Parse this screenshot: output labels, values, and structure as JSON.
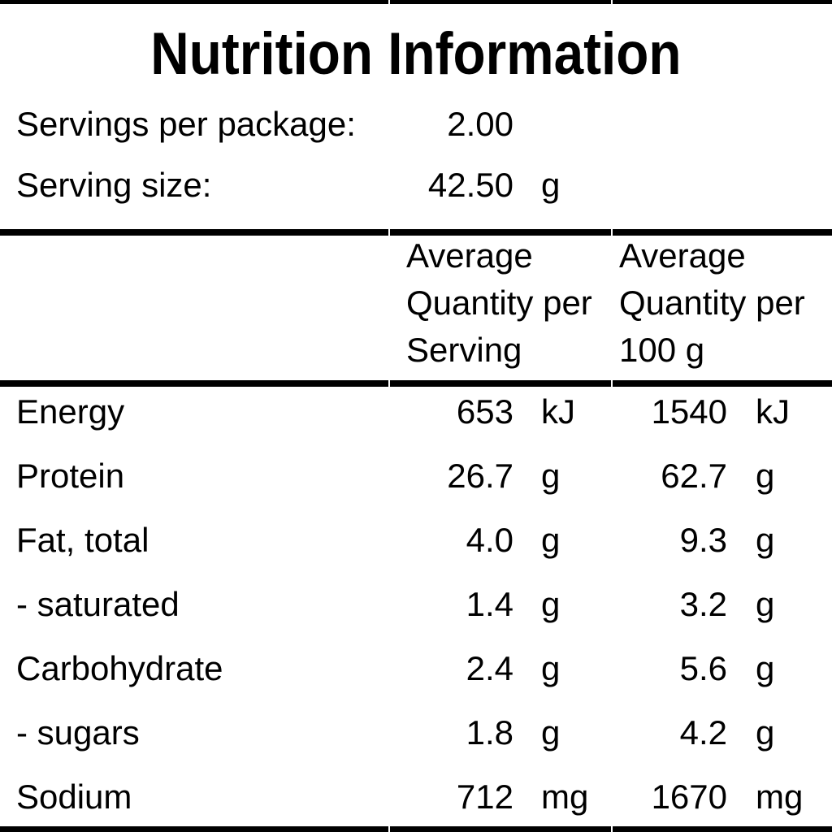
{
  "panel": {
    "title": "Nutrition Information",
    "serving_info": {
      "servings_per_package": {
        "label": "Servings per package:",
        "value": "2.00",
        "unit": ""
      },
      "serving_size": {
        "label": "Serving size:",
        "value": "42.50",
        "unit": "g"
      }
    },
    "column_headers": {
      "per_serving": [
        "Average",
        "Quantity per",
        "Serving"
      ],
      "per_100g": [
        "Average",
        "Quantity per",
        "100 g"
      ]
    },
    "rows": [
      {
        "label": "Energy",
        "per_serving": "653",
        "per_serving_unit": "kJ",
        "per_100g": "1540",
        "per_100g_unit": "kJ"
      },
      {
        "label": "Protein",
        "per_serving": "26.7",
        "per_serving_unit": "g",
        "per_100g": "62.7",
        "per_100g_unit": "g"
      },
      {
        "label": "Fat, total",
        "per_serving": "4.0",
        "per_serving_unit": "g",
        "per_100g": "9.3",
        "per_100g_unit": "g"
      },
      {
        "label": "- saturated",
        "per_serving": "1.4",
        "per_serving_unit": "g",
        "per_100g": "3.2",
        "per_100g_unit": "g"
      },
      {
        "label": "Carbohydrate",
        "per_serving": "2.4",
        "per_serving_unit": "g",
        "per_100g": "5.6",
        "per_100g_unit": "g"
      },
      {
        "label": "- sugars",
        "per_serving": "1.8",
        "per_serving_unit": "g",
        "per_100g": "4.2",
        "per_100g_unit": "g"
      },
      {
        "label": "Sodium",
        "per_serving": "712",
        "per_serving_unit": "mg",
        "per_100g": "1670",
        "per_100g_unit": "mg"
      }
    ],
    "colors": {
      "ink": "#000000",
      "background": "#ffffff"
    }
  }
}
